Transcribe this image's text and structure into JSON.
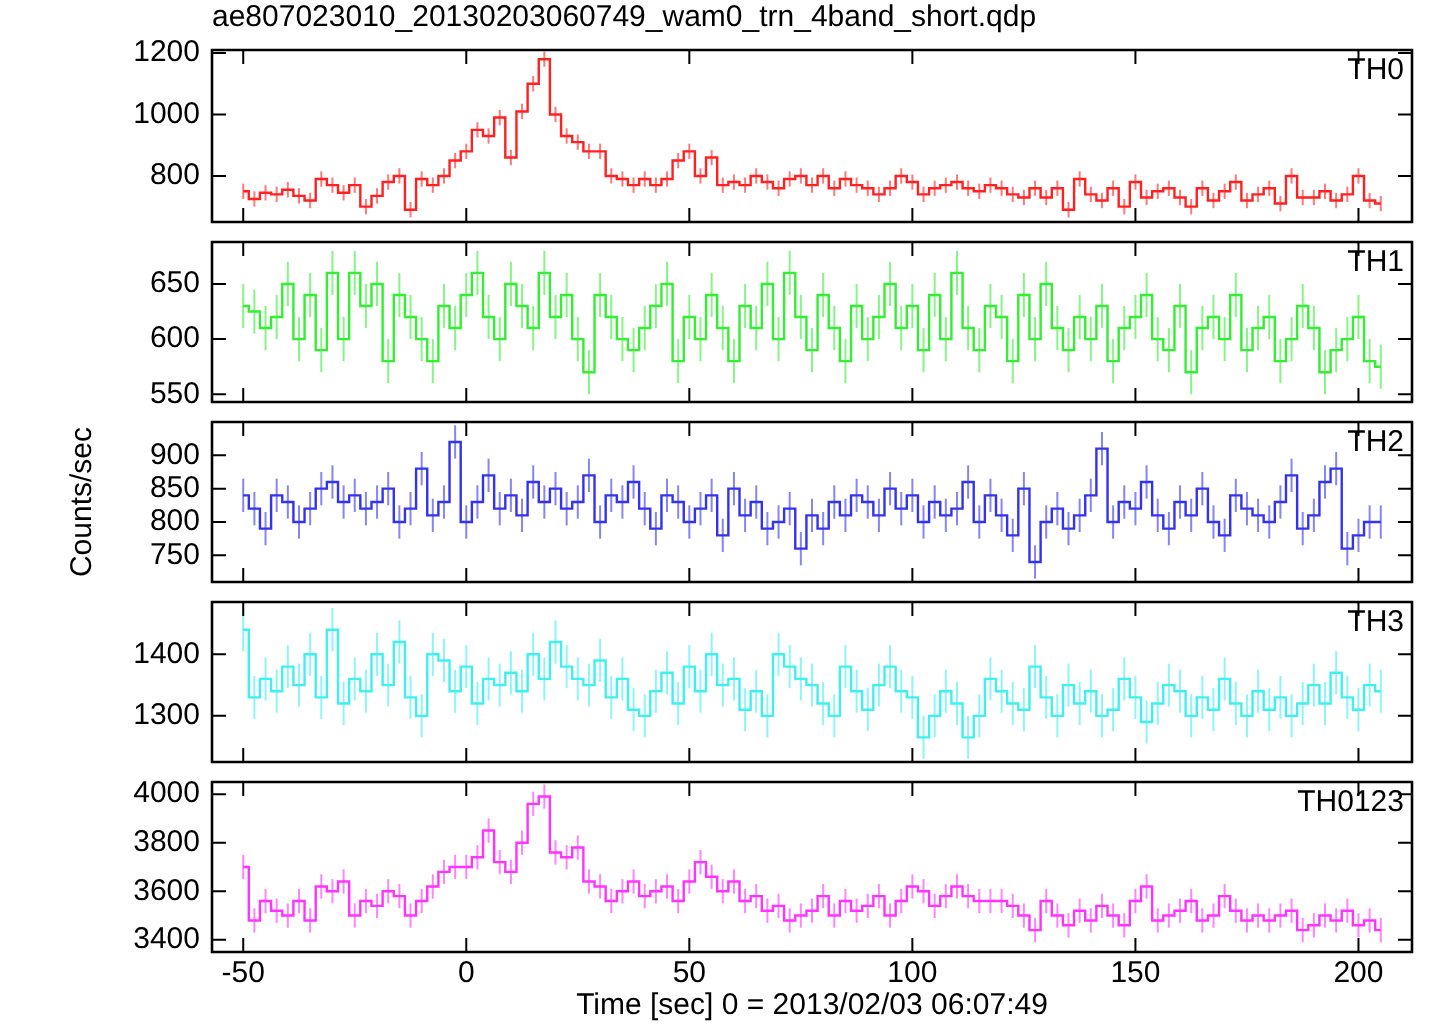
{
  "chart_data": [
    {
      "type": "step",
      "title": "ae807023010_20130203060749_wam0_trn_4band_short.qdp",
      "xlim": [
        -57,
        212
      ],
      "xticks": [
        -50,
        0,
        50,
        100,
        150,
        200
      ],
      "ylim": [
        650,
        1210
      ],
      "yticks": [
        800,
        1000,
        1200
      ],
      "tick_labels": "y",
      "x": [
        -50,
        -47.5,
        -45,
        -42.5,
        -40,
        -37.5,
        -35,
        -32.5,
        -30,
        -27.5,
        -25,
        -22.5,
        -20,
        -17.5,
        -15,
        -12.5,
        -10,
        -7.5,
        -5,
        -2.5,
        0,
        2.5,
        5,
        7.5,
        10,
        12.5,
        15,
        17.5,
        20,
        22.5,
        25,
        27.5,
        30,
        32.5,
        35,
        37.5,
        40,
        42.5,
        45,
        47.5,
        50,
        52.5,
        55,
        57.5,
        60,
        62.5,
        65,
        67.5,
        70,
        72.5,
        75,
        77.5,
        80,
        82.5,
        85,
        87.5,
        90,
        92.5,
        95,
        97.5,
        100,
        102.5,
        105,
        107.5,
        110,
        112.5,
        115,
        117.5,
        120,
        122.5,
        125,
        127.5,
        130,
        132.5,
        135,
        137.5,
        140,
        142.5,
        145,
        147.5,
        150,
        152.5,
        155,
        157.5,
        160,
        162.5,
        165,
        167.5,
        170,
        172.5,
        175,
        177.5,
        180,
        182.5,
        185,
        187.5,
        190,
        192.5,
        195,
        197.5,
        200,
        202.5,
        205
      ],
      "series": [
        {
          "name": "TH0",
          "color": "#ff2020",
          "values": [
            750,
            725,
            745,
            740,
            755,
            735,
            720,
            790,
            770,
            745,
            770,
            700,
            735,
            780,
            800,
            690,
            790,
            770,
            800,
            850,
            880,
            950,
            930,
            990,
            860,
            1010,
            1100,
            1180,
            1000,
            930,
            910,
            880,
            880,
            800,
            790,
            770,
            790,
            770,
            790,
            850,
            880,
            800,
            860,
            770,
            780,
            770,
            800,
            780,
            760,
            790,
            800,
            770,
            800,
            760,
            790,
            770,
            760,
            740,
            760,
            800,
            780,
            740,
            760,
            770,
            780,
            760,
            750,
            770,
            760,
            740,
            730,
            760,
            730,
            760,
            690,
            790,
            740,
            720,
            760,
            700,
            780,
            730,
            750,
            760,
            730,
            700,
            760,
            720,
            750,
            780,
            720,
            740,
            760,
            710,
            800,
            730,
            730,
            750,
            720,
            740,
            800,
            720,
            710
          ],
          "errors": [
            25,
            25,
            25,
            25,
            25,
            25,
            25,
            25,
            25,
            25,
            25,
            25,
            25,
            25,
            25,
            25,
            25,
            25,
            25,
            25,
            25,
            25,
            25,
            25,
            25,
            25,
            25,
            25,
            25,
            25,
            25,
            25,
            25,
            25,
            25,
            25,
            25,
            25,
            25,
            25,
            25,
            25,
            25,
            25,
            25,
            25,
            25,
            25,
            25,
            25,
            25,
            25,
            25,
            25,
            25,
            25,
            25,
            25,
            25,
            25,
            25,
            25,
            25,
            25,
            25,
            25,
            25,
            25,
            25,
            25,
            25,
            25,
            25,
            25,
            25,
            25,
            25,
            25,
            25,
            25,
            25,
            25,
            25,
            25,
            25,
            25,
            25,
            25,
            25,
            25,
            25,
            25,
            25,
            25,
            25,
            25,
            25,
            25,
            25,
            25,
            25,
            25,
            25
          ]
        }
      ]
    },
    {
      "type": "step",
      "xlim": [
        -57,
        212
      ],
      "xticks": [
        -50,
        0,
        50,
        100,
        150,
        200
      ],
      "ylim": [
        543,
        688
      ],
      "yticks": [
        550,
        600,
        650
      ],
      "tick_labels": "y",
      "x": [
        -50,
        -47.5,
        -45,
        -42.5,
        -40,
        -37.5,
        -35,
        -32.5,
        -30,
        -27.5,
        -25,
        -22.5,
        -20,
        -17.5,
        -15,
        -12.5,
        -10,
        -7.5,
        -5,
        -2.5,
        0,
        2.5,
        5,
        7.5,
        10,
        12.5,
        15,
        17.5,
        20,
        22.5,
        25,
        27.5,
        30,
        32.5,
        35,
        37.5,
        40,
        42.5,
        45,
        47.5,
        50,
        52.5,
        55,
        57.5,
        60,
        62.5,
        65,
        67.5,
        70,
        72.5,
        75,
        77.5,
        80,
        82.5,
        85,
        87.5,
        90,
        92.5,
        95,
        97.5,
        100,
        102.5,
        105,
        107.5,
        110,
        112.5,
        115,
        117.5,
        120,
        122.5,
        125,
        127.5,
        130,
        132.5,
        135,
        137.5,
        140,
        142.5,
        145,
        147.5,
        150,
        152.5,
        155,
        157.5,
        160,
        162.5,
        165,
        167.5,
        170,
        172.5,
        175,
        177.5,
        180,
        182.5,
        185,
        187.5,
        190,
        192.5,
        195,
        197.5,
        200,
        202.5,
        205
      ],
      "series": [
        {
          "name": "TH1",
          "color": "#33ee33",
          "values": [
            630,
            625,
            610,
            620,
            650,
            600,
            640,
            590,
            660,
            600,
            660,
            630,
            650,
            580,
            640,
            620,
            600,
            580,
            630,
            610,
            640,
            660,
            620,
            600,
            650,
            630,
            610,
            660,
            620,
            640,
            600,
            570,
            640,
            620,
            600,
            590,
            610,
            630,
            650,
            580,
            620,
            600,
            640,
            610,
            580,
            630,
            610,
            650,
            600,
            660,
            620,
            590,
            640,
            610,
            580,
            630,
            600,
            620,
            650,
            610,
            630,
            590,
            640,
            600,
            660,
            610,
            590,
            630,
            620,
            580,
            640,
            600,
            650,
            610,
            590,
            620,
            600,
            630,
            580,
            610,
            620,
            640,
            600,
            590,
            630,
            570,
            610,
            620,
            600,
            640,
            590,
            610,
            620,
            580,
            600,
            630,
            610,
            570,
            590,
            600,
            620,
            580,
            575
          ],
          "errors": [
            20,
            20,
            20,
            20,
            20,
            20,
            20,
            20,
            20,
            20,
            20,
            20,
            20,
            20,
            20,
            20,
            20,
            20,
            20,
            20,
            20,
            20,
            20,
            20,
            20,
            20,
            20,
            20,
            20,
            20,
            20,
            20,
            20,
            20,
            20,
            20,
            20,
            20,
            20,
            20,
            20,
            20,
            20,
            20,
            20,
            20,
            20,
            20,
            20,
            20,
            20,
            20,
            20,
            20,
            20,
            20,
            20,
            20,
            20,
            20,
            20,
            20,
            20,
            20,
            20,
            20,
            20,
            20,
            20,
            20,
            20,
            20,
            20,
            20,
            20,
            20,
            20,
            20,
            20,
            20,
            20,
            20,
            20,
            20,
            20,
            20,
            20,
            20,
            20,
            20,
            20,
            20,
            20,
            20,
            20,
            20,
            20,
            20,
            20,
            20,
            20,
            20,
            20
          ]
        }
      ]
    },
    {
      "type": "step",
      "ylabel": "Counts/sec",
      "xlim": [
        -57,
        212
      ],
      "xticks": [
        -50,
        0,
        50,
        100,
        150,
        200
      ],
      "ylim": [
        710,
        950
      ],
      "yticks": [
        750,
        800,
        850,
        900
      ],
      "tick_labels": "y",
      "x": [
        -50,
        -47.5,
        -45,
        -42.5,
        -40,
        -37.5,
        -35,
        -32.5,
        -30,
        -27.5,
        -25,
        -22.5,
        -20,
        -17.5,
        -15,
        -12.5,
        -10,
        -7.5,
        -5,
        -2.5,
        0,
        2.5,
        5,
        7.5,
        10,
        12.5,
        15,
        17.5,
        20,
        22.5,
        25,
        27.5,
        30,
        32.5,
        35,
        37.5,
        40,
        42.5,
        45,
        47.5,
        50,
        52.5,
        55,
        57.5,
        60,
        62.5,
        65,
        67.5,
        70,
        72.5,
        75,
        77.5,
        80,
        82.5,
        85,
        87.5,
        90,
        92.5,
        95,
        97.5,
        100,
        102.5,
        105,
        107.5,
        110,
        112.5,
        115,
        117.5,
        120,
        122.5,
        125,
        127.5,
        130,
        132.5,
        135,
        137.5,
        140,
        142.5,
        145,
        147.5,
        150,
        152.5,
        155,
        157.5,
        160,
        162.5,
        165,
        167.5,
        170,
        172.5,
        175,
        177.5,
        180,
        182.5,
        185,
        187.5,
        190,
        192.5,
        195,
        197.5,
        200,
        202.5,
        205
      ],
      "series": [
        {
          "name": "TH2",
          "color": "#3333ee",
          "values": [
            840,
            820,
            790,
            840,
            830,
            800,
            820,
            850,
            860,
            830,
            840,
            820,
            830,
            850,
            800,
            820,
            880,
            810,
            830,
            920,
            800,
            830,
            870,
            820,
            840,
            810,
            860,
            830,
            850,
            820,
            830,
            870,
            800,
            840,
            830,
            860,
            820,
            790,
            840,
            830,
            800,
            820,
            840,
            780,
            850,
            810,
            830,
            790,
            800,
            820,
            760,
            810,
            790,
            830,
            810,
            840,
            830,
            810,
            850,
            820,
            840,
            800,
            830,
            810,
            820,
            860,
            800,
            840,
            810,
            780,
            850,
            740,
            800,
            820,
            790,
            810,
            840,
            910,
            800,
            830,
            820,
            860,
            810,
            790,
            830,
            810,
            850,
            800,
            780,
            840,
            820,
            810,
            800,
            830,
            870,
            790,
            810,
            860,
            880,
            760,
            780,
            800,
            800
          ],
          "errors": [
            25,
            25,
            25,
            25,
            25,
            25,
            25,
            25,
            25,
            25,
            25,
            25,
            25,
            25,
            25,
            25,
            25,
            25,
            25,
            25,
            25,
            25,
            25,
            25,
            25,
            25,
            25,
            25,
            25,
            25,
            25,
            25,
            25,
            25,
            25,
            25,
            25,
            25,
            25,
            25,
            25,
            25,
            25,
            25,
            25,
            25,
            25,
            25,
            25,
            25,
            25,
            25,
            25,
            25,
            25,
            25,
            25,
            25,
            25,
            25,
            25,
            25,
            25,
            25,
            25,
            25,
            25,
            25,
            25,
            25,
            25,
            25,
            25,
            25,
            25,
            25,
            25,
            25,
            25,
            25,
            25,
            25,
            25,
            25,
            25,
            25,
            25,
            25,
            25,
            25,
            25,
            25,
            25,
            25,
            25,
            25,
            25,
            25,
            25,
            25,
            25,
            25,
            25
          ]
        }
      ]
    },
    {
      "type": "step",
      "xlim": [
        -57,
        212
      ],
      "xticks": [
        -50,
        0,
        50,
        100,
        150,
        200
      ],
      "ylim": [
        1225,
        1485
      ],
      "yticks": [
        1300,
        1400
      ],
      "tick_labels": "y",
      "x": [
        -50,
        -47.5,
        -45,
        -42.5,
        -40,
        -37.5,
        -35,
        -32.5,
        -30,
        -27.5,
        -25,
        -22.5,
        -20,
        -17.5,
        -15,
        -12.5,
        -10,
        -7.5,
        -5,
        -2.5,
        0,
        2.5,
        5,
        7.5,
        10,
        12.5,
        15,
        17.5,
        20,
        22.5,
        25,
        27.5,
        30,
        32.5,
        35,
        37.5,
        40,
        42.5,
        45,
        47.5,
        50,
        52.5,
        55,
        57.5,
        60,
        62.5,
        65,
        67.5,
        70,
        72.5,
        75,
        77.5,
        80,
        82.5,
        85,
        87.5,
        90,
        92.5,
        95,
        97.5,
        100,
        102.5,
        105,
        107.5,
        110,
        112.5,
        115,
        117.5,
        120,
        122.5,
        125,
        127.5,
        130,
        132.5,
        135,
        137.5,
        140,
        142.5,
        145,
        147.5,
        150,
        152.5,
        155,
        157.5,
        160,
        162.5,
        165,
        167.5,
        170,
        172.5,
        175,
        177.5,
        180,
        182.5,
        185,
        187.5,
        190,
        192.5,
        195,
        197.5,
        200,
        202.5,
        205
      ],
      "series": [
        {
          "name": "TH3",
          "color": "#40f0f0",
          "values": [
            1440,
            1330,
            1360,
            1340,
            1380,
            1350,
            1400,
            1330,
            1440,
            1320,
            1360,
            1340,
            1400,
            1350,
            1420,
            1330,
            1300,
            1400,
            1390,
            1340,
            1380,
            1320,
            1360,
            1350,
            1370,
            1340,
            1400,
            1360,
            1420,
            1380,
            1360,
            1350,
            1390,
            1330,
            1360,
            1310,
            1300,
            1340,
            1370,
            1320,
            1380,
            1340,
            1400,
            1350,
            1360,
            1310,
            1340,
            1300,
            1400,
            1380,
            1360,
            1350,
            1320,
            1300,
            1380,
            1340,
            1310,
            1350,
            1380,
            1340,
            1330,
            1265,
            1300,
            1340,
            1320,
            1265,
            1300,
            1360,
            1340,
            1320,
            1310,
            1380,
            1330,
            1300,
            1350,
            1320,
            1340,
            1300,
            1310,
            1360,
            1330,
            1290,
            1320,
            1350,
            1340,
            1300,
            1330,
            1310,
            1360,
            1320,
            1300,
            1340,
            1310,
            1330,
            1300,
            1320,
            1350,
            1320,
            1370,
            1330,
            1310,
            1350,
            1340
          ],
          "errors": [
            35,
            35,
            35,
            35,
            35,
            35,
            35,
            35,
            35,
            35,
            35,
            35,
            35,
            35,
            35,
            35,
            35,
            35,
            35,
            35,
            35,
            35,
            35,
            35,
            35,
            35,
            35,
            35,
            35,
            35,
            35,
            35,
            35,
            35,
            35,
            35,
            35,
            35,
            35,
            35,
            35,
            35,
            35,
            35,
            35,
            35,
            35,
            35,
            35,
            35,
            35,
            35,
            35,
            35,
            35,
            35,
            35,
            35,
            35,
            35,
            35,
            35,
            35,
            35,
            35,
            35,
            35,
            35,
            35,
            35,
            35,
            35,
            35,
            35,
            35,
            35,
            35,
            35,
            35,
            35,
            35,
            35,
            35,
            35,
            35,
            35,
            35,
            35,
            35,
            35,
            35,
            35,
            35,
            35,
            35,
            35,
            35,
            35,
            35,
            35,
            35,
            35,
            35
          ]
        }
      ]
    },
    {
      "type": "step",
      "xlabel": "Time [sec] 0 = 2013/02/03 06:07:49",
      "xlim": [
        -57,
        212
      ],
      "xticks": [
        -50,
        0,
        50,
        100,
        150,
        200
      ],
      "ylim": [
        3350,
        4050
      ],
      "yticks": [
        3400,
        3600,
        3800,
        4000
      ],
      "x": [
        -50,
        -47.5,
        -45,
        -42.5,
        -40,
        -37.5,
        -35,
        -32.5,
        -30,
        -27.5,
        -25,
        -22.5,
        -20,
        -17.5,
        -15,
        -12.5,
        -10,
        -7.5,
        -5,
        -2.5,
        0,
        2.5,
        5,
        7.5,
        10,
        12.5,
        15,
        17.5,
        20,
        22.5,
        25,
        27.5,
        30,
        32.5,
        35,
        37.5,
        40,
        42.5,
        45,
        47.5,
        50,
        52.5,
        55,
        57.5,
        60,
        62.5,
        65,
        67.5,
        70,
        72.5,
        75,
        77.5,
        80,
        82.5,
        85,
        87.5,
        90,
        92.5,
        95,
        97.5,
        100,
        102.5,
        105,
        107.5,
        110,
        112.5,
        115,
        117.5,
        120,
        122.5,
        125,
        127.5,
        130,
        132.5,
        135,
        137.5,
        140,
        142.5,
        145,
        147.5,
        150,
        152.5,
        155,
        157.5,
        160,
        162.5,
        165,
        167.5,
        170,
        172.5,
        175,
        177.5,
        180,
        182.5,
        185,
        187.5,
        190,
        192.5,
        195,
        197.5,
        200,
        202.5,
        205
      ],
      "series": [
        {
          "name": "TH0123",
          "color": "#ff33ff",
          "values": [
            3700,
            3480,
            3560,
            3520,
            3500,
            3560,
            3480,
            3620,
            3600,
            3640,
            3500,
            3560,
            3540,
            3600,
            3580,
            3500,
            3560,
            3620,
            3680,
            3700,
            3700,
            3740,
            3850,
            3720,
            3680,
            3800,
            3960,
            3990,
            3760,
            3740,
            3780,
            3640,
            3620,
            3560,
            3600,
            3640,
            3580,
            3600,
            3620,
            3560,
            3640,
            3720,
            3660,
            3600,
            3640,
            3560,
            3580,
            3520,
            3540,
            3480,
            3500,
            3520,
            3580,
            3500,
            3560,
            3520,
            3540,
            3580,
            3500,
            3560,
            3620,
            3600,
            3540,
            3580,
            3620,
            3580,
            3560,
            3560,
            3560,
            3540,
            3500,
            3440,
            3560,
            3500,
            3460,
            3520,
            3480,
            3540,
            3500,
            3460,
            3560,
            3620,
            3480,
            3500,
            3520,
            3560,
            3480,
            3500,
            3580,
            3520,
            3480,
            3500,
            3480,
            3500,
            3520,
            3440,
            3460,
            3500,
            3480,
            3520,
            3460,
            3480,
            3440
          ],
          "errors": [
            50,
            50,
            50,
            50,
            50,
            50,
            50,
            50,
            50,
            50,
            50,
            50,
            50,
            50,
            50,
            50,
            50,
            50,
            50,
            50,
            50,
            50,
            50,
            50,
            50,
            50,
            50,
            50,
            50,
            50,
            50,
            50,
            50,
            50,
            50,
            50,
            50,
            50,
            50,
            50,
            50,
            50,
            50,
            50,
            50,
            50,
            50,
            50,
            50,
            50,
            50,
            50,
            50,
            50,
            50,
            50,
            50,
            50,
            50,
            50,
            50,
            50,
            50,
            50,
            50,
            50,
            50,
            50,
            50,
            50,
            50,
            50,
            50,
            50,
            50,
            50,
            50,
            50,
            50,
            50,
            50,
            50,
            50,
            50,
            50,
            50,
            50,
            50,
            50,
            50,
            50,
            50,
            50,
            50,
            50,
            50,
            50,
            50,
            50,
            50,
            50,
            50,
            50
          ]
        }
      ]
    }
  ]
}
